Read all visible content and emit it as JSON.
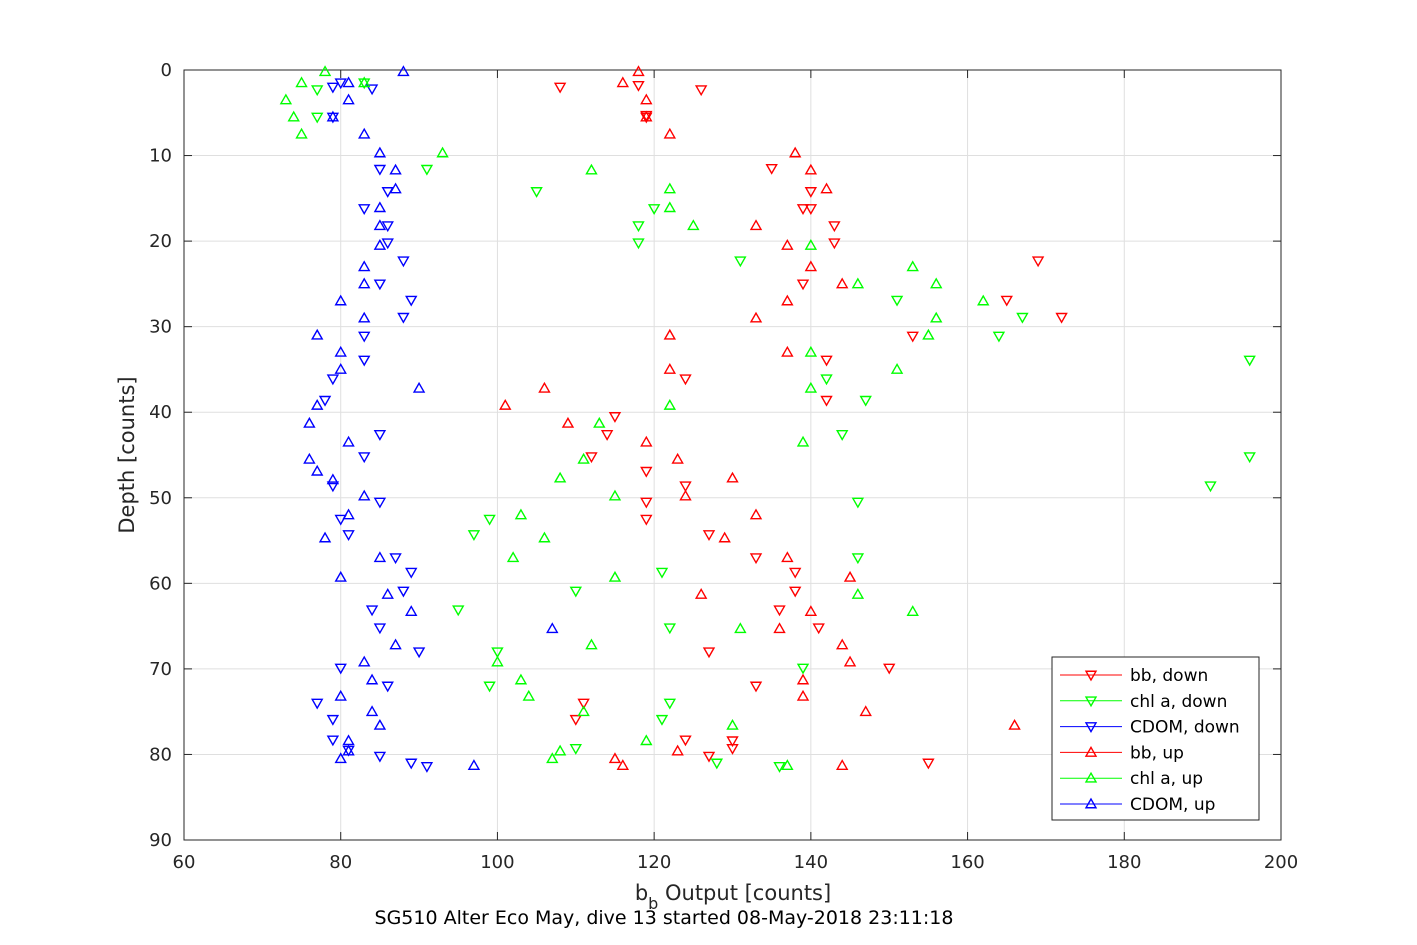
{
  "chart_data": {
    "type": "scatter",
    "xlabel_main": "b",
    "xlabel_sub": "b",
    "xlabel_rest": " Output [counts]",
    "ylabel": "Depth [counts]",
    "caption": "SG510 Alter Eco May, dive 13 started 08-May-2018 23:11:18",
    "xlim": [
      60,
      200
    ],
    "ylim": [
      0,
      90
    ],
    "y_reversed": true,
    "grid": true,
    "x_ticks": [
      60,
      80,
      100,
      120,
      140,
      160,
      180,
      200
    ],
    "y_ticks": [
      0,
      10,
      20,
      30,
      40,
      50,
      60,
      70,
      80,
      90
    ],
    "legend_position": "bottom-right",
    "series": [
      {
        "name": "bb, down",
        "color": "#ff0000",
        "marker": "triangle-down",
        "points": [
          [
            108,
            2
          ],
          [
            126,
            2.3
          ],
          [
            118,
            1.8
          ],
          [
            119,
            5.5
          ],
          [
            119,
            5.3
          ],
          [
            135,
            11.5
          ],
          [
            140,
            14.2
          ],
          [
            139,
            16.2
          ],
          [
            140,
            16.2
          ],
          [
            143,
            18.2
          ],
          [
            143,
            20.2
          ],
          [
            169,
            22.3
          ],
          [
            139,
            25
          ],
          [
            165,
            26.9
          ],
          [
            172,
            28.9
          ],
          [
            153,
            31.1
          ],
          [
            142,
            33.9
          ],
          [
            124,
            36.1
          ],
          [
            142,
            38.6
          ],
          [
            115,
            40.5
          ],
          [
            114,
            42.6
          ],
          [
            112,
            45.2
          ],
          [
            119,
            46.9
          ],
          [
            124,
            48.6
          ],
          [
            119,
            50.5
          ],
          [
            119,
            52.5
          ],
          [
            127,
            54.3
          ],
          [
            133,
            57
          ],
          [
            138,
            58.7
          ],
          [
            138,
            60.9
          ],
          [
            136,
            63.1
          ],
          [
            141,
            65.2
          ],
          [
            127,
            68
          ],
          [
            150,
            69.9
          ],
          [
            133,
            72
          ],
          [
            111,
            74
          ],
          [
            110,
            75.9
          ],
          [
            124,
            78.3
          ],
          [
            130,
            78.4
          ],
          [
            130,
            79.3
          ],
          [
            127,
            80.2
          ],
          [
            155,
            81
          ]
        ]
      },
      {
        "name": "chl a, down",
        "color": "#00ff00",
        "marker": "triangle-down",
        "points": [
          [
            77,
            2.3
          ],
          [
            83,
            1.5
          ],
          [
            77,
            5.5
          ],
          [
            91,
            11.6
          ],
          [
            105,
            14.2
          ],
          [
            120,
            16.2
          ],
          [
            118,
            18.2
          ],
          [
            118,
            20.2
          ],
          [
            131,
            22.3
          ],
          [
            151,
            26.9
          ],
          [
            167,
            28.9
          ],
          [
            164,
            31.1
          ],
          [
            196,
            33.9
          ],
          [
            142,
            36.1
          ],
          [
            147,
            38.6
          ],
          [
            144,
            42.6
          ],
          [
            196,
            45.2
          ],
          [
            191,
            48.6
          ],
          [
            146,
            50.5
          ],
          [
            99,
            52.5
          ],
          [
            97,
            54.3
          ],
          [
            146,
            57
          ],
          [
            121,
            58.7
          ],
          [
            110,
            60.9
          ],
          [
            95,
            63.1
          ],
          [
            122,
            65.2
          ],
          [
            100,
            68
          ],
          [
            139,
            69.9
          ],
          [
            99,
            72
          ],
          [
            122,
            74
          ],
          [
            121,
            75.9
          ],
          [
            110,
            79.3
          ],
          [
            128,
            81
          ],
          [
            136,
            81.4
          ]
        ]
      },
      {
        "name": "CDOM, down",
        "color": "#0000ff",
        "marker": "triangle-down",
        "points": [
          [
            79,
            2
          ],
          [
            84,
            2.2
          ],
          [
            80,
            1.5
          ],
          [
            79,
            5.5
          ],
          [
            85,
            11.6
          ],
          [
            86,
            14.2
          ],
          [
            83,
            16.2
          ],
          [
            86,
            18.2
          ],
          [
            86,
            20.2
          ],
          [
            88,
            22.3
          ],
          [
            85,
            25
          ],
          [
            89,
            26.9
          ],
          [
            88,
            28.9
          ],
          [
            83,
            31.1
          ],
          [
            83,
            33.9
          ],
          [
            79,
            36.1
          ],
          [
            78,
            38.6
          ],
          [
            85,
            42.6
          ],
          [
            83,
            45.2
          ],
          [
            79,
            48.6
          ],
          [
            85,
            50.5
          ],
          [
            80,
            52.5
          ],
          [
            81,
            54.3
          ],
          [
            87,
            57
          ],
          [
            89,
            58.7
          ],
          [
            88,
            60.9
          ],
          [
            84,
            63.1
          ],
          [
            85,
            65.2
          ],
          [
            90,
            68
          ],
          [
            80,
            69.9
          ],
          [
            86,
            72
          ],
          [
            77,
            74
          ],
          [
            79,
            75.9
          ],
          [
            79,
            78.3
          ],
          [
            81,
            79.5
          ],
          [
            85,
            80.2
          ],
          [
            89,
            81
          ],
          [
            91,
            81.4
          ]
        ]
      },
      {
        "name": "bb, up",
        "color": "#ff0000",
        "marker": "triangle-up",
        "points": [
          [
            118,
            0.2
          ],
          [
            116,
            1.5
          ],
          [
            119,
            3.5
          ],
          [
            119,
            5.5
          ],
          [
            122,
            7.5
          ],
          [
            138,
            9.7
          ],
          [
            140,
            11.7
          ],
          [
            142,
            13.9
          ],
          [
            133,
            18.2
          ],
          [
            137,
            20.5
          ],
          [
            140,
            23
          ],
          [
            144,
            25
          ],
          [
            137,
            27
          ],
          [
            133,
            29
          ],
          [
            122,
            31
          ],
          [
            137,
            33
          ],
          [
            122,
            35
          ],
          [
            106,
            37.2
          ],
          [
            101,
            39.2
          ],
          [
            109,
            41.3
          ],
          [
            119,
            43.5
          ],
          [
            123,
            45.5
          ],
          [
            130,
            47.7
          ],
          [
            124,
            49.8
          ],
          [
            133,
            52
          ],
          [
            129,
            54.7
          ],
          [
            137,
            57
          ],
          [
            145,
            59.3
          ],
          [
            126,
            61.3
          ],
          [
            140,
            63.3
          ],
          [
            136,
            65.3
          ],
          [
            144,
            67.2
          ],
          [
            145,
            69.2
          ],
          [
            139,
            71.3
          ],
          [
            139,
            73.2
          ],
          [
            147,
            75
          ],
          [
            166,
            76.6
          ],
          [
            123,
            79.6
          ],
          [
            115,
            80.5
          ],
          [
            116,
            81.3
          ],
          [
            144,
            81.3
          ]
        ]
      },
      {
        "name": "chl a, up",
        "color": "#00ff00",
        "marker": "triangle-up",
        "points": [
          [
            78,
            0.2
          ],
          [
            75,
            1.5
          ],
          [
            83,
            1.5
          ],
          [
            73,
            3.5
          ],
          [
            74,
            5.5
          ],
          [
            75,
            7.5
          ],
          [
            93,
            9.7
          ],
          [
            112,
            11.7
          ],
          [
            122,
            13.9
          ],
          [
            122,
            16.1
          ],
          [
            125,
            18.2
          ],
          [
            140,
            20.5
          ],
          [
            153,
            23
          ],
          [
            146,
            25
          ],
          [
            156,
            25
          ],
          [
            162,
            27
          ],
          [
            156,
            29
          ],
          [
            155,
            31
          ],
          [
            140,
            33
          ],
          [
            151,
            35
          ],
          [
            140,
            37.2
          ],
          [
            122,
            39.2
          ],
          [
            113,
            41.3
          ],
          [
            139,
            43.5
          ],
          [
            111,
            45.5
          ],
          [
            108,
            47.7
          ],
          [
            115,
            49.8
          ],
          [
            103,
            52
          ],
          [
            106,
            54.7
          ],
          [
            102,
            57
          ],
          [
            115,
            59.3
          ],
          [
            146,
            61.3
          ],
          [
            153,
            63.3
          ],
          [
            131,
            65.3
          ],
          [
            112,
            67.2
          ],
          [
            100,
            69.2
          ],
          [
            103,
            71.3
          ],
          [
            104,
            73.2
          ],
          [
            111,
            75
          ],
          [
            130,
            76.6
          ],
          [
            119,
            78.4
          ],
          [
            108,
            79.6
          ],
          [
            107,
            80.5
          ],
          [
            137,
            81.3
          ]
        ]
      },
      {
        "name": "CDOM, up",
        "color": "#0000ff",
        "marker": "triangle-up",
        "points": [
          [
            88,
            0.2
          ],
          [
            81,
            1.5
          ],
          [
            81,
            3.5
          ],
          [
            79,
            5.5
          ],
          [
            83,
            7.5
          ],
          [
            85,
            9.7
          ],
          [
            87,
            11.7
          ],
          [
            87,
            13.9
          ],
          [
            85,
            16.1
          ],
          [
            85,
            18.2
          ],
          [
            85,
            20.5
          ],
          [
            83,
            23
          ],
          [
            83,
            25
          ],
          [
            80,
            27
          ],
          [
            83,
            29
          ],
          [
            77,
            31
          ],
          [
            80,
            33
          ],
          [
            80,
            35
          ],
          [
            90,
            37.2
          ],
          [
            77,
            39.2
          ],
          [
            76,
            41.3
          ],
          [
            81,
            43.5
          ],
          [
            76,
            45.5
          ],
          [
            77,
            46.9
          ],
          [
            79,
            47.9
          ],
          [
            83,
            49.8
          ],
          [
            81,
            52
          ],
          [
            78,
            54.7
          ],
          [
            85,
            57
          ],
          [
            80,
            59.3
          ],
          [
            86,
            61.3
          ],
          [
            89,
            63.3
          ],
          [
            87,
            67.2
          ],
          [
            83,
            69.2
          ],
          [
            84,
            71.3
          ],
          [
            80,
            73.2
          ],
          [
            84,
            75
          ],
          [
            85,
            76.6
          ],
          [
            81,
            78.4
          ],
          [
            81,
            79.6
          ],
          [
            80,
            80.5
          ],
          [
            97,
            81.3
          ],
          [
            107,
            65.3
          ]
        ]
      }
    ]
  }
}
